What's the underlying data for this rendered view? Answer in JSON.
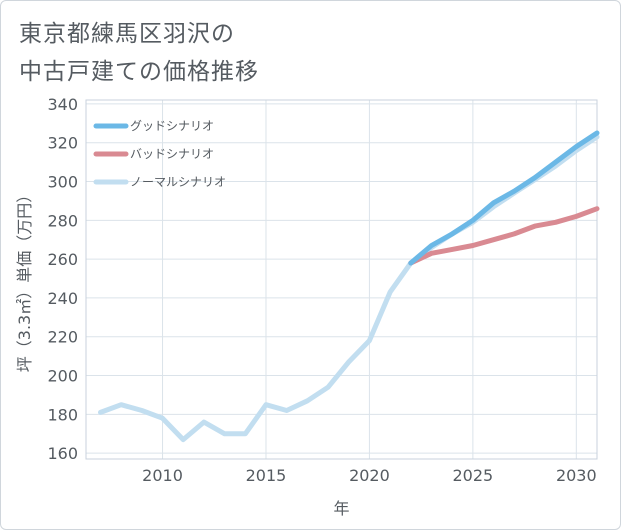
{
  "title_lines": [
    "東京都練馬区羽沢の",
    "中古戸建ての価格推移"
  ],
  "chart_data": {
    "type": "line",
    "xlabel": "年",
    "ylabel": "坪（3.3㎡）単価（万円）",
    "xlim": [
      2006.3,
      2031
    ],
    "ylim": [
      157,
      342
    ],
    "xticks": [
      2010,
      2015,
      2020,
      2025,
      2030
    ],
    "yticks": [
      160,
      180,
      200,
      220,
      240,
      260,
      280,
      300,
      320,
      340
    ],
    "grid": true,
    "legend_position": "top-left",
    "series": [
      {
        "name": "グッドシナリオ",
        "color": "#6bb8e6",
        "x": [
          2022,
          2023,
          2024,
          2025,
          2026,
          2027,
          2028,
          2029,
          2030,
          2031
        ],
        "y": [
          258,
          267,
          273,
          280,
          289,
          295,
          302,
          310,
          318,
          325
        ]
      },
      {
        "name": "バッドシナリオ",
        "color": "#d98a92",
        "x": [
          2022,
          2023,
          2024,
          2025,
          2026,
          2027,
          2028,
          2029,
          2030,
          2031
        ],
        "y": [
          258,
          263,
          265,
          267,
          270,
          273,
          277,
          279,
          282,
          286
        ]
      },
      {
        "name": "ノーマルシナリオ",
        "color": "#c2def0",
        "x": [
          2007,
          2008,
          2009,
          2010,
          2011,
          2012,
          2013,
          2014,
          2015,
          2016,
          2017,
          2018,
          2019,
          2020,
          2021,
          2022,
          2023,
          2024,
          2025,
          2026,
          2027,
          2028,
          2029,
          2030,
          2031
        ],
        "y": [
          181,
          185,
          182,
          178,
          167,
          176,
          170,
          170,
          185,
          182,
          187,
          194,
          207,
          218,
          243,
          258,
          266,
          273,
          279,
          287,
          294,
          301,
          308,
          316,
          323
        ]
      }
    ]
  }
}
